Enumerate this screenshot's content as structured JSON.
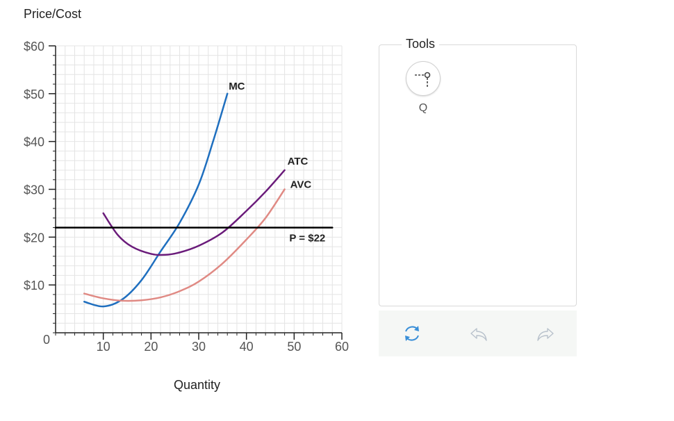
{
  "chart_data": {
    "type": "line",
    "ylabel": "Price/Cost",
    "xlabel": "Quantity",
    "xlim": [
      0,
      60
    ],
    "ylim": [
      0,
      60
    ],
    "x_ticks": [
      10,
      20,
      30,
      40,
      50,
      60
    ],
    "x_tick_labels": [
      "10",
      "20",
      "30",
      "40",
      "50",
      "60"
    ],
    "y_ticks": [
      0,
      10,
      20,
      30,
      40,
      50,
      60
    ],
    "y_tick_labels": [
      "0",
      "$10",
      "$20",
      "$30",
      "$40",
      "$50",
      "$60"
    ],
    "grid": true,
    "series": [
      {
        "name": "MC",
        "color": "#1f6fbf",
        "points": [
          [
            6,
            6.5
          ],
          [
            10,
            5.5
          ],
          [
            14,
            7
          ],
          [
            18,
            11
          ],
          [
            22,
            17
          ],
          [
            26,
            23
          ],
          [
            30,
            31
          ],
          [
            33,
            40
          ],
          [
            36,
            50
          ]
        ]
      },
      {
        "name": "ATC",
        "color": "#6a1b7a",
        "points": [
          [
            10,
            25
          ],
          [
            13,
            20.5
          ],
          [
            16,
            18
          ],
          [
            20,
            16.5
          ],
          [
            23,
            16.3
          ],
          [
            26,
            16.8
          ],
          [
            30,
            18.2
          ],
          [
            35,
            21
          ],
          [
            40,
            25.5
          ],
          [
            44,
            29.5
          ],
          [
            48,
            34
          ]
        ]
      },
      {
        "name": "AVC",
        "color": "#e08a84",
        "points": [
          [
            6,
            8.2
          ],
          [
            10,
            7.2
          ],
          [
            14,
            6.7
          ],
          [
            18,
            6.8
          ],
          [
            22,
            7.4
          ],
          [
            26,
            8.7
          ],
          [
            30,
            10.7
          ],
          [
            35,
            14.5
          ],
          [
            40,
            19.5
          ],
          [
            44,
            24
          ],
          [
            48,
            30
          ]
        ]
      },
      {
        "name": "P = $22",
        "color": "#000000",
        "points": [
          [
            0,
            22
          ],
          [
            58,
            22
          ]
        ]
      }
    ]
  },
  "tools": {
    "title": "Tools",
    "items": [
      {
        "label": "Q",
        "icon": "quantity-line-tool-icon"
      }
    ]
  },
  "actions": {
    "reset_icon": "reset-icon",
    "undo_icon": "undo-icon",
    "redo_icon": "redo-icon"
  }
}
